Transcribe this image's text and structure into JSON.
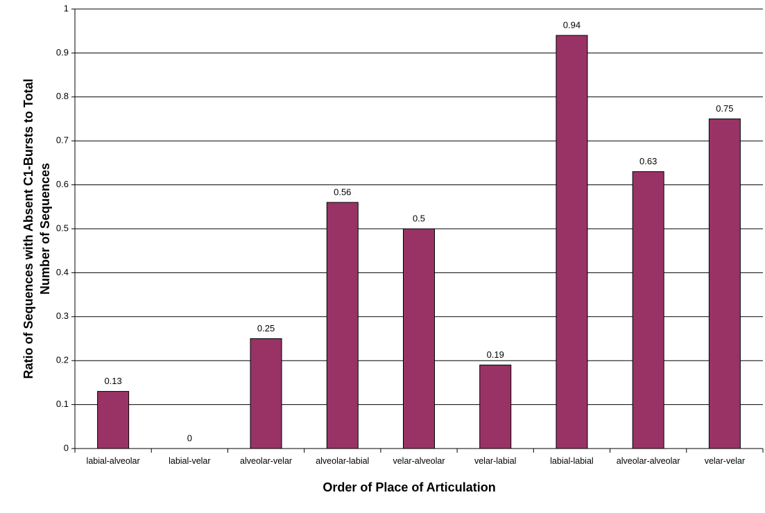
{
  "chart_data": {
    "type": "bar",
    "x_label": "Order of Place of Articulation",
    "y_label": [
      "Ratio of Sequences with Absent C1-Bursts to Total",
      "Number of Sequences"
    ],
    "categories": [
      "labial-alveolar",
      "labial-velar",
      "alveolar-velar",
      "alveolar-labial",
      "velar-alveolar",
      "velar-labial",
      "labial-labial",
      "alveolar-alveolar",
      "velar-velar"
    ],
    "values": [
      0.13,
      0,
      0.25,
      0.56,
      0.5,
      0.19,
      0.94,
      0.63,
      0.75
    ],
    "color": "#993366",
    "ylim": [
      0,
      1
    ],
    "yticks": [
      0,
      0.1,
      0.2,
      0.3,
      0.4,
      0.5,
      0.6,
      0.7,
      0.8,
      0.9,
      1
    ],
    "grid": true
  }
}
